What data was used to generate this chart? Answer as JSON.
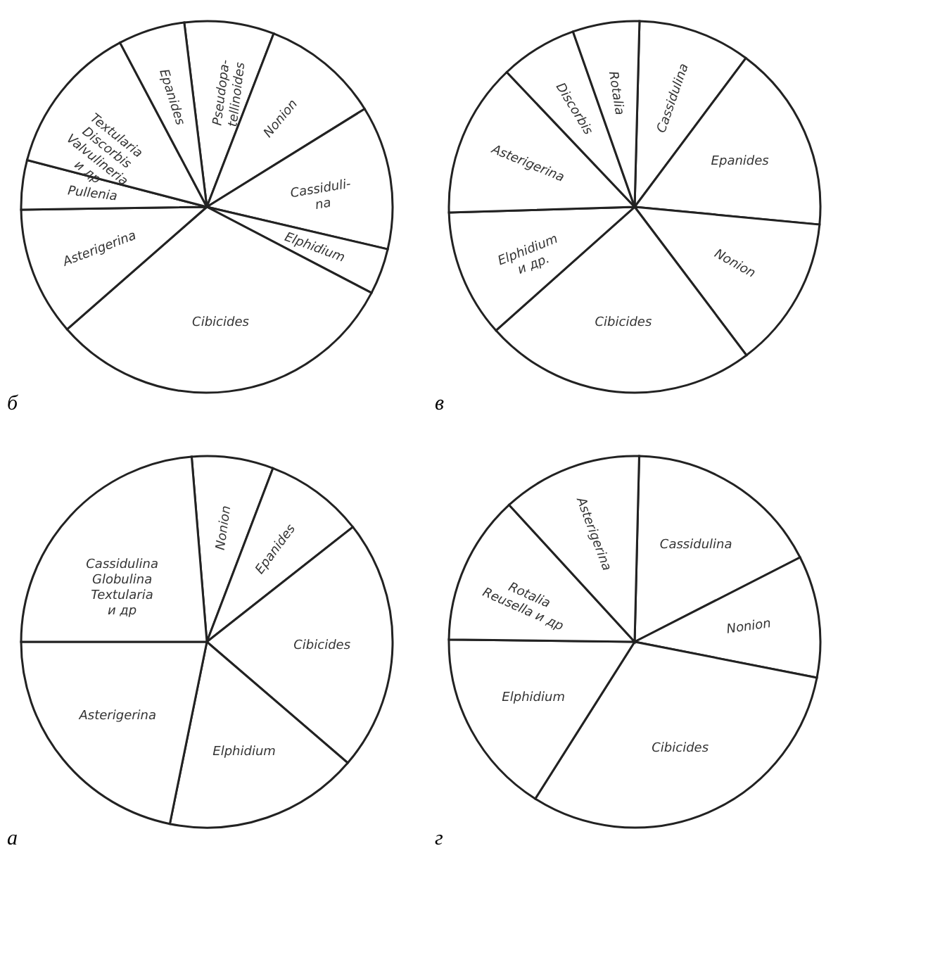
{
  "chart_data": [
    {
      "type": "pie",
      "title": "б",
      "categories": [
        "Pseudopa-\ntellinoides",
        "Nonion",
        "Cassiduli-\nna",
        "Elphidium",
        "Cibicides",
        "Asterigerina",
        "Pullenia",
        "Textularia\nDiscorbis\nValvulineria\nи др",
        "Epanides"
      ],
      "values": [
        7.8,
        10.3,
        12.5,
        4.0,
        30.9,
        11.2,
        4.3,
        13.2,
        5.8
      ],
      "colors": [
        "#ffffff",
        "#ffffff",
        "#ffffff",
        "#ffffff",
        "#ffffff",
        "#ffffff",
        "#ffffff",
        "#ffffff",
        "#ffffff"
      ]
    },
    {
      "type": "pie",
      "title": "в",
      "categories": [
        "Cassidulina",
        "Epanides",
        "Nonion",
        "Cibicides",
        "Elphidium\nи др.",
        "Asterigerina",
        "Discorbis",
        "Rotalia"
      ],
      "values": [
        9.8,
        16.3,
        13.2,
        23.7,
        11.1,
        13.4,
        6.7,
        5.8
      ],
      "colors": [
        "#ffffff",
        "#ffffff",
        "#ffffff",
        "#ffffff",
        "#ffffff",
        "#ffffff",
        "#ffffff",
        "#ffffff"
      ]
    },
    {
      "type": "pie",
      "title": "а",
      "categories": [
        "Nonion",
        "Epanides",
        "Cibicides",
        "Elphidium",
        "Asterigerina",
        "Cassidulina\nGlobulina\nTextularia\nи др"
      ],
      "values": [
        7.1,
        8.6,
        21.9,
        16.9,
        21.8,
        23.7
      ],
      "colors": [
        "#ffffff",
        "#ffffff",
        "#ffffff",
        "#ffffff",
        "#ffffff",
        "#ffffff"
      ]
    },
    {
      "type": "pie",
      "title": "г",
      "categories": [
        "Cassidulina",
        "Nonion",
        "Cibicides",
        "Elphidium",
        "Rotalia\nReusella и др",
        "Asterigerina"
      ],
      "values": [
        17.1,
        10.6,
        30.9,
        16.2,
        13.0,
        12.2
      ],
      "colors": [
        "#ffffff",
        "#ffffff",
        "#ffffff",
        "#ffffff",
        "#ffffff",
        "#ffffff"
      ]
    }
  ]
}
